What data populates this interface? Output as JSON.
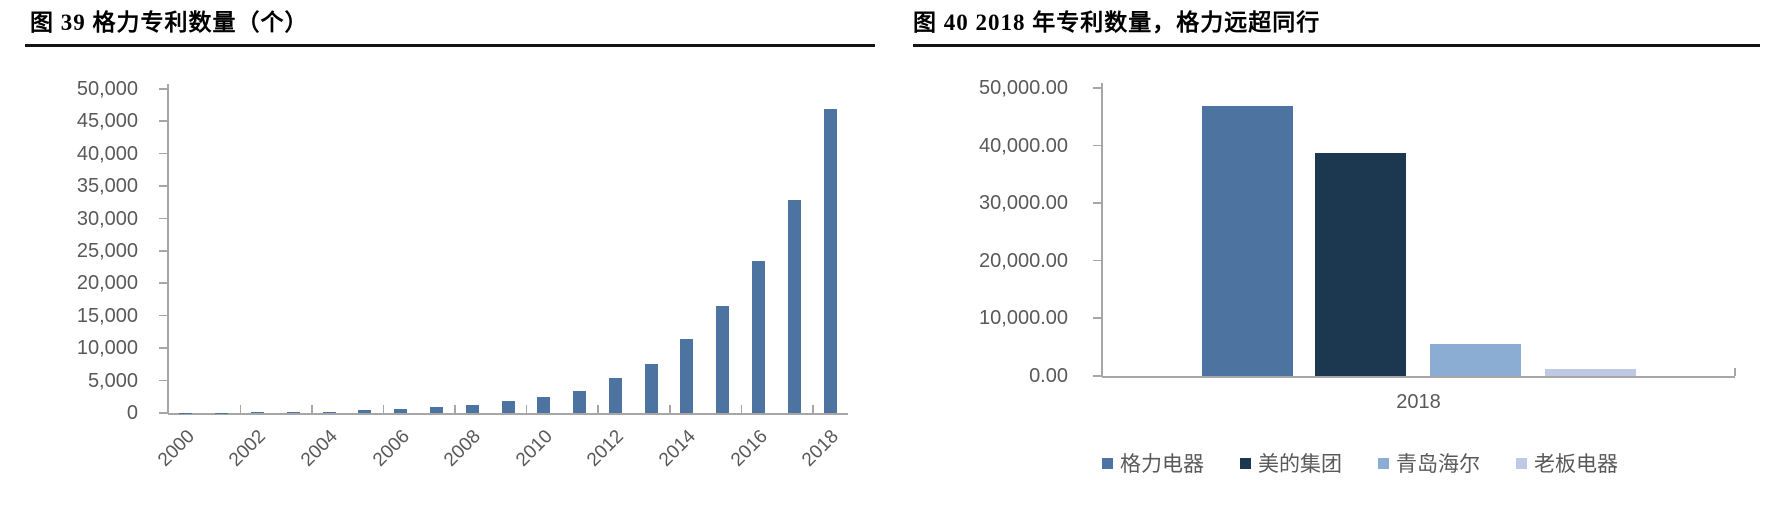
{
  "figure_left": {
    "title": "图 39 格力专利数量（个）"
  },
  "figure_right": {
    "title": "图 40 2018 年专利数量，格力远超同行"
  },
  "chart_data": [
    {
      "type": "bar",
      "title": "图 39 格力专利数量（个）",
      "categories": [
        "2000",
        "2001",
        "2002",
        "2003",
        "2004",
        "2005",
        "2006",
        "2007",
        "2008",
        "2009",
        "2010",
        "2011",
        "2012",
        "2013",
        "2014",
        "2015",
        "2016",
        "2017",
        "2018"
      ],
      "values": [
        20,
        40,
        80,
        120,
        200,
        400,
        600,
        900,
        1300,
        1800,
        2500,
        3400,
        5400,
        7500,
        11400,
        16500,
        23500,
        32800,
        46900
      ],
      "xlabel": "",
      "ylabel": "",
      "ylim": [
        0,
        50000
      ],
      "ytick_step": 5000,
      "ytick_labels": [
        "0",
        "5,000",
        "10,000",
        "15,000",
        "20,000",
        "25,000",
        "30,000",
        "35,000",
        "40,000",
        "45,000",
        "50,000"
      ],
      "xtick_labels": [
        "2000",
        "2002",
        "2004",
        "2006",
        "2008",
        "2010",
        "2012",
        "2014",
        "2016",
        "2018"
      ],
      "xtick_interval": 2,
      "bar_color": "#4d73a1",
      "grid": false,
      "legend": "none"
    },
    {
      "type": "bar",
      "title": "图 40 2018 年专利数量，格力远超同行",
      "categories": [
        "格力电器",
        "美的集团",
        "青岛海尔",
        "老板电器"
      ],
      "values": [
        46900,
        38800,
        5500,
        1200
      ],
      "bar_colors": [
        "#4d73a1",
        "#1c3750",
        "#8badd3",
        "#bec9e6"
      ],
      "x_axis_group_label": "2018",
      "xlabel": "2018",
      "ylabel": "",
      "ylim": [
        0,
        50000
      ],
      "ytick_step": 10000,
      "ytick_labels": [
        "0.00",
        "10,000.00",
        "20,000.00",
        "30,000.00",
        "40,000.00",
        "50,000.00"
      ],
      "legend_entries": [
        "格力电器",
        "美的集团",
        "青岛海尔",
        "老板电器"
      ],
      "legend_position": "bottom",
      "grid": false
    }
  ],
  "colors": {
    "steel_blue": "#4d73a1",
    "navy": "#1c3750",
    "light_blue": "#8badd3",
    "periwinkle": "#bec9e6",
    "axis_gray": "#a6a6a6",
    "label_gray": "#595959",
    "title_rule_black": "#141414"
  }
}
